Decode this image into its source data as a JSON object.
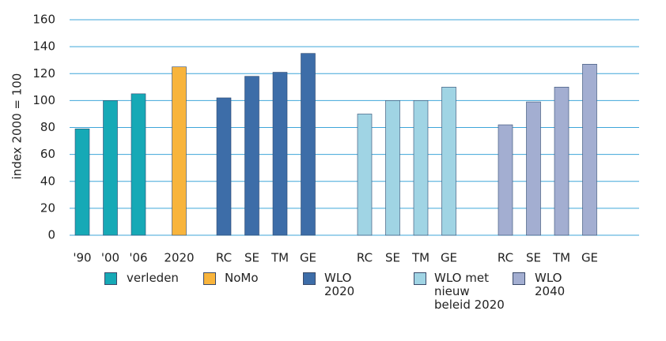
{
  "chart_data": {
    "type": "bar",
    "ylabel": "index 2000 = 100",
    "categories": [
      "'90",
      "'00",
      "'06",
      "2020",
      "RC",
      "SE",
      "TM",
      "GE",
      "RC",
      "SE",
      "TM",
      "GE",
      "RC",
      "SE",
      "TM",
      "GE"
    ],
    "series": [
      {
        "name": "verleden",
        "color": "#16a9b6",
        "values": [
          79,
          100,
          105,
          null,
          null,
          null,
          null,
          null,
          null,
          null,
          null,
          null,
          null,
          null,
          null,
          null
        ]
      },
      {
        "name": "NoMo",
        "color": "#f8b43c",
        "values": [
          null,
          null,
          null,
          125,
          null,
          null,
          null,
          null,
          null,
          null,
          null,
          null,
          null,
          null,
          null,
          null
        ]
      },
      {
        "name": "WLO 2020",
        "color": "#3d6da8",
        "values": [
          null,
          null,
          null,
          null,
          102,
          118,
          121,
          135,
          null,
          null,
          null,
          null,
          null,
          null,
          null,
          null
        ]
      },
      {
        "name": "WLO met nieuw beleid 2020",
        "color": "#a0d4e4",
        "values": [
          null,
          null,
          null,
          null,
          null,
          null,
          null,
          null,
          90,
          100,
          100,
          110,
          null,
          null,
          null,
          null
        ]
      },
      {
        "name": "WLO 2040",
        "color": "#a3aed1",
        "values": [
          null,
          null,
          null,
          null,
          null,
          null,
          null,
          null,
          null,
          null,
          null,
          null,
          82,
          99,
          110,
          127
        ]
      }
    ],
    "ylim": [
      0,
      160
    ],
    "yticks": [
      0,
      20,
      40,
      60,
      80,
      100,
      120,
      140,
      160
    ],
    "grid": true
  }
}
